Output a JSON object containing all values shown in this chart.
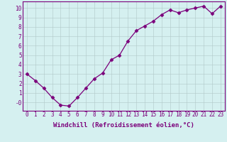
{
  "xlabel": "Windchill (Refroidissement éolien,°C)",
  "x_values": [
    0,
    1,
    2,
    3,
    4,
    5,
    6,
    7,
    8,
    9,
    10,
    11,
    12,
    13,
    14,
    15,
    16,
    17,
    18,
    19,
    20,
    21,
    22,
    23
  ],
  "y_values": [
    3.0,
    2.3,
    1.5,
    0.5,
    -0.3,
    -0.4,
    0.5,
    1.5,
    2.5,
    3.1,
    4.5,
    5.0,
    6.5,
    7.6,
    8.1,
    8.6,
    9.3,
    9.8,
    9.5,
    9.8,
    10.0,
    10.2,
    9.4,
    10.2
  ],
  "line_color": "#7b007b",
  "marker": "D",
  "marker_size": 2.5,
  "bg_color": "#d5f0f0",
  "grid_color": "#b0c8c8",
  "ylim": [
    -0.9,
    10.7
  ],
  "xlim": [
    -0.5,
    23.5
  ],
  "ytick_labels": [
    "10",
    "9",
    "8",
    "7",
    "6",
    "5",
    "4",
    "3",
    "2",
    "1",
    "-0"
  ],
  "ytick_vals": [
    10,
    9,
    8,
    7,
    6,
    5,
    4,
    3,
    2,
    1,
    0
  ],
  "xtick_labels": [
    "0",
    "1",
    "2",
    "3",
    "4",
    "5",
    "6",
    "7",
    "8",
    "9",
    "10",
    "11",
    "12",
    "13",
    "14",
    "15",
    "16",
    "17",
    "18",
    "19",
    "20",
    "21",
    "22",
    "23"
  ],
  "xtick_vals": [
    0,
    1,
    2,
    3,
    4,
    5,
    6,
    7,
    8,
    9,
    10,
    11,
    12,
    13,
    14,
    15,
    16,
    17,
    18,
    19,
    20,
    21,
    22,
    23
  ],
  "tick_fontsize": 5.5,
  "xlabel_fontsize": 6.5,
  "spine_color": "#7b007b",
  "linewidth": 0.9
}
